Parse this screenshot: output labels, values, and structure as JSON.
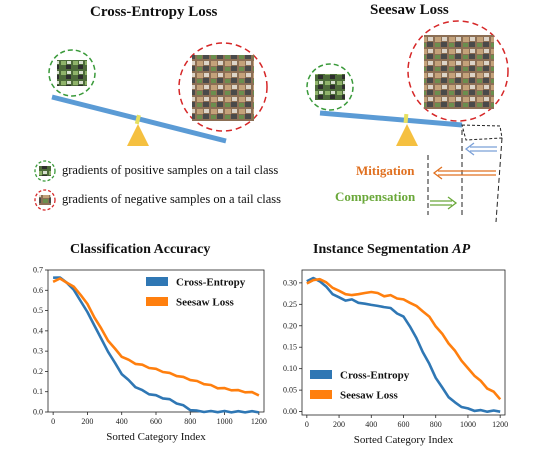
{
  "top": {
    "left_title": "Cross-Entropy Loss",
    "right_title": "Seesaw Loss",
    "legend_positive": "gradients of positive samples on a tail class",
    "legend_negative": "gradients of negative samples on a tail class",
    "mitigation_label": "Mitigation",
    "compensation_label": "Compensation"
  },
  "colors": {
    "cross_entropy": "#2f77b4",
    "seesaw": "#ff7f0e",
    "beam": "#5b9bd5",
    "pivot": "#f5c040",
    "positive_ring": "#3a9a3a",
    "negative_ring": "#d62728"
  },
  "chart_data": [
    {
      "type": "line",
      "title": "Classification Accuracy",
      "xlabel": "Sorted Category Index",
      "ylabel": "",
      "xlim": [
        -30,
        1230
      ],
      "ylim": [
        0,
        0.7
      ],
      "xticks": [
        "0",
        "200",
        "400",
        "600",
        "800",
        "1000",
        "1200"
      ],
      "yticks": [
        "0.0",
        "0.1",
        "0.2",
        "0.3",
        "0.4",
        "0.5",
        "0.6",
        "0.7"
      ],
      "legend": "top-right",
      "series": [
        {
          "name": "Cross-Entropy",
          "x": [
            0,
            40,
            80,
            120,
            160,
            200,
            240,
            280,
            320,
            360,
            400,
            440,
            480,
            520,
            560,
            600,
            640,
            680,
            720,
            760,
            800,
            840,
            880,
            920,
            960,
            1000,
            1040,
            1080,
            1120,
            1160,
            1200
          ],
          "y": [
            0.665,
            0.66,
            0.64,
            0.6,
            0.55,
            0.49,
            0.43,
            0.36,
            0.3,
            0.24,
            0.19,
            0.155,
            0.125,
            0.105,
            0.09,
            0.08,
            0.07,
            0.06,
            0.045,
            0.03,
            0.012,
            0.004,
            0.003,
            0.002,
            0.002,
            0.002,
            0.001,
            0.001,
            0.001,
            0.001,
            0.001
          ]
        },
        {
          "name": "Seesaw Loss",
          "x": [
            0,
            40,
            80,
            120,
            160,
            200,
            240,
            280,
            320,
            360,
            400,
            440,
            480,
            520,
            560,
            600,
            640,
            680,
            720,
            760,
            800,
            840,
            880,
            920,
            960,
            1000,
            1040,
            1080,
            1120,
            1160,
            1200
          ],
          "y": [
            0.645,
            0.655,
            0.64,
            0.615,
            0.58,
            0.53,
            0.47,
            0.41,
            0.355,
            0.31,
            0.275,
            0.255,
            0.24,
            0.23,
            0.22,
            0.21,
            0.2,
            0.19,
            0.18,
            0.17,
            0.16,
            0.15,
            0.14,
            0.13,
            0.12,
            0.115,
            0.11,
            0.105,
            0.1,
            0.095,
            0.085
          ]
        }
      ]
    },
    {
      "type": "line",
      "title": "Instance Segmentation AP",
      "xlabel": "Sorted Category Index",
      "ylabel": "",
      "xlim": [
        -30,
        1230
      ],
      "ylim": [
        -0.008,
        0.33
      ],
      "xticks": [
        "0",
        "200",
        "400",
        "600",
        "800",
        "1000",
        "1200"
      ],
      "yticks": [
        "0.00",
        "0.05",
        "0.10",
        "0.15",
        "0.20",
        "0.25",
        "0.30"
      ],
      "legend": "bottom-left",
      "series": [
        {
          "name": "Cross-Entropy",
          "x": [
            0,
            40,
            80,
            120,
            160,
            200,
            240,
            280,
            320,
            360,
            400,
            440,
            480,
            520,
            560,
            600,
            640,
            680,
            720,
            760,
            800,
            840,
            880,
            920,
            960,
            1000,
            1040,
            1080,
            1120,
            1160,
            1200
          ],
          "y": [
            0.305,
            0.31,
            0.305,
            0.29,
            0.275,
            0.265,
            0.26,
            0.26,
            0.255,
            0.25,
            0.25,
            0.245,
            0.245,
            0.24,
            0.23,
            0.22,
            0.2,
            0.17,
            0.14,
            0.11,
            0.08,
            0.055,
            0.035,
            0.02,
            0.012,
            0.006,
            0.003,
            0.002,
            0.001,
            0.001,
            0.001
          ]
        },
        {
          "name": "Seesaw Loss",
          "x": [
            0,
            40,
            80,
            120,
            160,
            200,
            240,
            280,
            320,
            360,
            400,
            440,
            480,
            520,
            560,
            600,
            640,
            680,
            720,
            760,
            800,
            840,
            880,
            920,
            960,
            1000,
            1040,
            1080,
            1120,
            1160,
            1200
          ],
          "y": [
            0.3,
            0.305,
            0.31,
            0.3,
            0.29,
            0.28,
            0.275,
            0.27,
            0.275,
            0.275,
            0.28,
            0.275,
            0.27,
            0.27,
            0.265,
            0.26,
            0.255,
            0.245,
            0.235,
            0.22,
            0.2,
            0.18,
            0.16,
            0.14,
            0.12,
            0.1,
            0.085,
            0.07,
            0.055,
            0.045,
            0.03
          ]
        }
      ]
    }
  ]
}
